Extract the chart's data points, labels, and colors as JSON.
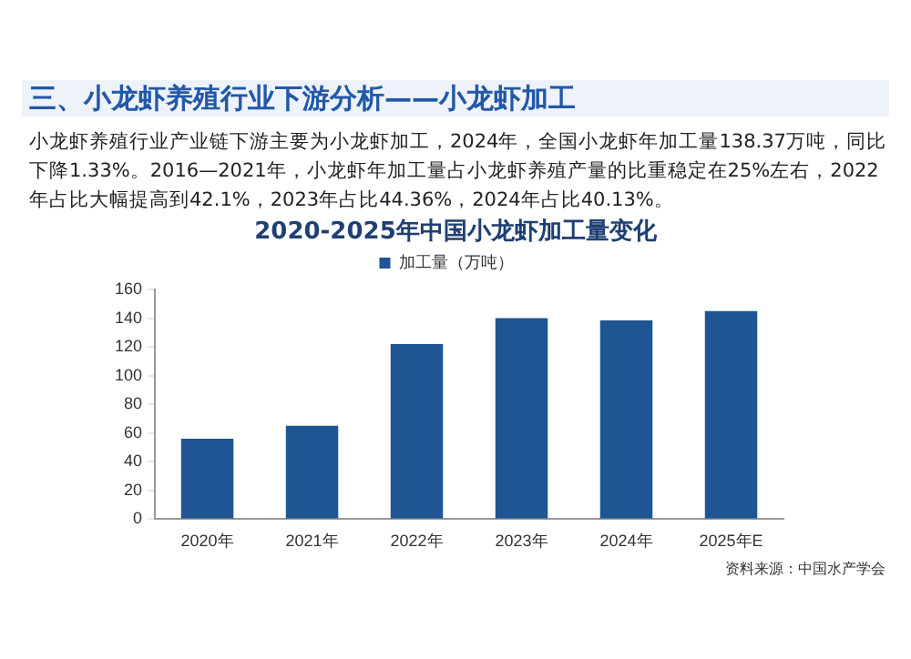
{
  "chart_data": {
    "type": "bar",
    "title": "2020-2025年中国小龙虾加工量变化",
    "categories": [
      "2020年",
      "2021年",
      "2022年",
      "2023年",
      "2024年",
      "2025年E"
    ],
    "series": [
      {
        "name": "加工量（万吨）",
        "color": "#1f5592",
        "values": [
          56,
          65,
          122,
          140,
          138.37,
          145
        ]
      }
    ],
    "ylim": [
      0,
      160
    ],
    "yticks": [
      0,
      20,
      40,
      60,
      80,
      100,
      120,
      140,
      160
    ],
    "grid": false,
    "legend": "top",
    "annotations": [
      "三、小龙虾养殖行业下游分析——小龙虾加工",
      "小龙虾养殖行业产业链下游主要为小龙虾加工，2024年，全国小龙虾年加工量138.37万吨，同比下降1.33%。2016—2021年，小龙虾年加工量占小龙虾养殖产量的比重稳定在25%左右，2022年占比大幅提高到42.1%，2023年占比44.36%，2024年占比40.13%。",
      "资料来源：中国水产学会"
    ]
  }
}
